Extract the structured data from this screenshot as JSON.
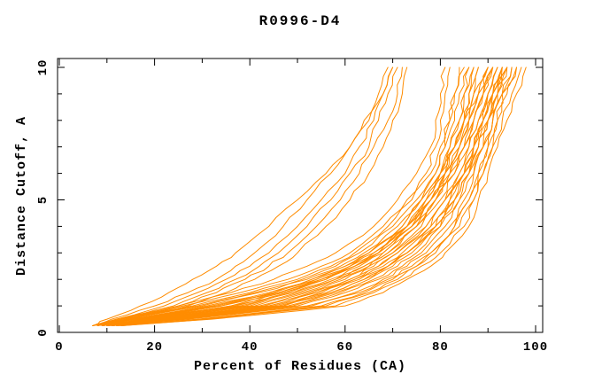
{
  "chart_data": {
    "type": "line",
    "title": "R0996-D4",
    "xlabel": "Percent of Residues (CA)",
    "ylabel": "Distance Cutoff, A",
    "xlim": [
      0,
      101.8
    ],
    "ylim": [
      0,
      10.37
    ],
    "x_major_ticks": [
      0,
      20,
      40,
      60,
      80,
      100
    ],
    "x_minor_ticks": [
      10,
      30,
      50,
      70,
      90
    ],
    "y_major_ticks": [
      0,
      5,
      10
    ],
    "y_minor_ticks": [
      1,
      2,
      3,
      4,
      6,
      7,
      8,
      9
    ],
    "grid": false,
    "legend": false,
    "line_color": "#ff8c00",
    "axis_color": "#000000",
    "cutoffs": [
      0.25,
      0.5,
      1,
      1.5,
      2,
      2.5,
      3,
      4,
      5,
      6,
      7,
      8,
      9,
      10
    ],
    "series": [
      {
        "x": [
          11,
          26,
          52,
          62,
          68,
          73,
          77,
          82,
          85,
          87,
          89,
          91,
          93,
          95
        ]
      },
      {
        "x": [
          12,
          30,
          56,
          65,
          71,
          75,
          79,
          84,
          87,
          89,
          91,
          92,
          94,
          96
        ]
      },
      {
        "x": [
          10,
          24,
          49,
          59,
          66,
          71,
          75,
          80,
          84,
          86,
          88,
          90,
          92,
          94
        ]
      },
      {
        "x": [
          13,
          32,
          60,
          68,
          73,
          78,
          81,
          86,
          88,
          90,
          92,
          94,
          96,
          98
        ]
      },
      {
        "x": [
          11,
          27,
          53,
          63,
          69,
          74,
          78,
          83,
          86,
          88,
          90,
          92,
          93,
          95
        ]
      },
      {
        "x": [
          10,
          23,
          47,
          57,
          64,
          69,
          73,
          79,
          82,
          85,
          87,
          89,
          91,
          93
        ]
      },
      {
        "x": [
          12,
          29,
          55,
          64,
          70,
          75,
          78,
          83,
          86,
          88,
          90,
          91,
          93,
          96
        ]
      },
      {
        "x": [
          11,
          25,
          50,
          60,
          67,
          72,
          76,
          81,
          84,
          87,
          89,
          90,
          92,
          94
        ]
      },
      {
        "x": [
          13,
          31,
          58,
          66,
          72,
          76,
          80,
          85,
          87,
          89,
          91,
          93,
          95,
          97
        ]
      },
      {
        "x": [
          10,
          24,
          48,
          58,
          65,
          70,
          74,
          80,
          83,
          85,
          88,
          90,
          92,
          94
        ]
      },
      {
        "x": [
          9,
          18,
          40,
          50,
          58,
          64,
          68,
          75,
          79,
          82,
          85,
          87,
          89,
          91
        ]
      },
      {
        "x": [
          10,
          20,
          43,
          53,
          61,
          66,
          70,
          77,
          81,
          84,
          86,
          88,
          90,
          92
        ]
      },
      {
        "x": [
          9,
          17,
          38,
          48,
          56,
          62,
          67,
          74,
          78,
          81,
          84,
          86,
          88,
          90
        ]
      },
      {
        "x": [
          10,
          21,
          45,
          55,
          62,
          68,
          72,
          78,
          82,
          85,
          87,
          89,
          91,
          93
        ]
      },
      {
        "x": [
          8,
          16,
          36,
          46,
          54,
          61,
          66,
          73,
          77,
          80,
          83,
          85,
          87,
          90
        ]
      },
      {
        "x": [
          10,
          20,
          44,
          54,
          61,
          67,
          71,
          77,
          81,
          84,
          87,
          89,
          90,
          92
        ]
      },
      {
        "x": [
          9,
          18,
          41,
          51,
          59,
          65,
          69,
          75,
          79,
          83,
          85,
          87,
          89,
          91
        ]
      },
      {
        "x": [
          11,
          22,
          46,
          56,
          63,
          69,
          73,
          79,
          83,
          86,
          88,
          90,
          91,
          93
        ]
      },
      {
        "x": [
          9,
          18,
          39,
          49,
          57,
          63,
          68,
          74,
          78,
          82,
          85,
          87,
          89,
          91
        ]
      },
      {
        "x": [
          10,
          19,
          42,
          52,
          60,
          65,
          70,
          76,
          80,
          83,
          86,
          88,
          90,
          92
        ]
      },
      {
        "x": [
          8,
          15,
          34,
          45,
          53,
          60,
          65,
          72,
          76,
          80,
          83,
          85,
          88,
          90
        ]
      },
      {
        "x": [
          11,
          23,
          47,
          57,
          64,
          69,
          73,
          79,
          83,
          86,
          89,
          91,
          92,
          94
        ]
      },
      {
        "x": [
          9,
          17,
          37,
          47,
          55,
          62,
          67,
          73,
          77,
          81,
          84,
          86,
          88,
          91
        ]
      },
      {
        "x": [
          10,
          21,
          44,
          54,
          62,
          67,
          71,
          78,
          81,
          85,
          87,
          89,
          91,
          93
        ]
      },
      {
        "x": [
          8,
          14,
          30,
          42,
          52,
          59,
          64,
          71,
          76,
          79,
          81,
          82,
          83,
          84
        ]
      },
      {
        "x": [
          8,
          15,
          32,
          45,
          54,
          61,
          66,
          73,
          77,
          80,
          82,
          84,
          85,
          86
        ]
      },
      {
        "x": [
          7,
          13,
          28,
          40,
          50,
          57,
          62,
          69,
          74,
          78,
          80,
          82,
          83,
          85
        ]
      },
      {
        "x": [
          9,
          16,
          34,
          47,
          56,
          62,
          67,
          74,
          78,
          81,
          83,
          85,
          86,
          87
        ]
      },
      {
        "x": [
          8,
          14,
          29,
          41,
          51,
          58,
          63,
          70,
          75,
          79,
          81,
          83,
          84,
          86
        ]
      },
      {
        "x": [
          9,
          17,
          36,
          49,
          58,
          64,
          69,
          75,
          79,
          82,
          84,
          86,
          87,
          88
        ]
      },
      {
        "x": [
          7,
          12,
          26,
          38,
          48,
          55,
          61,
          68,
          73,
          77,
          79,
          80,
          81,
          82
        ]
      },
      {
        "x": [
          9,
          16,
          33,
          46,
          55,
          62,
          67,
          73,
          78,
          81,
          83,
          85,
          86,
          88
        ]
      },
      {
        "x": [
          8,
          15,
          31,
          44,
          53,
          60,
          65,
          72,
          76,
          80,
          82,
          84,
          85,
          87
        ]
      },
      {
        "x": [
          7,
          12,
          25,
          36,
          45,
          52,
          58,
          66,
          71,
          75,
          78,
          79,
          80,
          81
        ]
      },
      {
        "x": [
          7,
          11,
          20,
          27,
          33,
          37,
          41,
          47,
          52,
          57,
          61,
          64,
          67,
          69
        ]
      },
      {
        "x": [
          8,
          12,
          22,
          29,
          35,
          40,
          44,
          50,
          55,
          60,
          63,
          66,
          68,
          70
        ]
      },
      {
        "x": [
          8,
          13,
          24,
          31,
          37,
          42,
          46,
          52,
          57,
          61,
          65,
          67,
          69,
          71
        ]
      },
      {
        "x": [
          9,
          14,
          25,
          33,
          39,
          44,
          48,
          54,
          59,
          63,
          66,
          69,
          71,
          72
        ]
      },
      {
        "x": [
          9,
          15,
          27,
          35,
          41,
          46,
          50,
          56,
          61,
          65,
          68,
          70,
          72,
          73
        ]
      },
      {
        "x": [
          7,
          10,
          17,
          23,
          28,
          33,
          37,
          44,
          50,
          56,
          61,
          65,
          68,
          70
        ]
      }
    ]
  }
}
